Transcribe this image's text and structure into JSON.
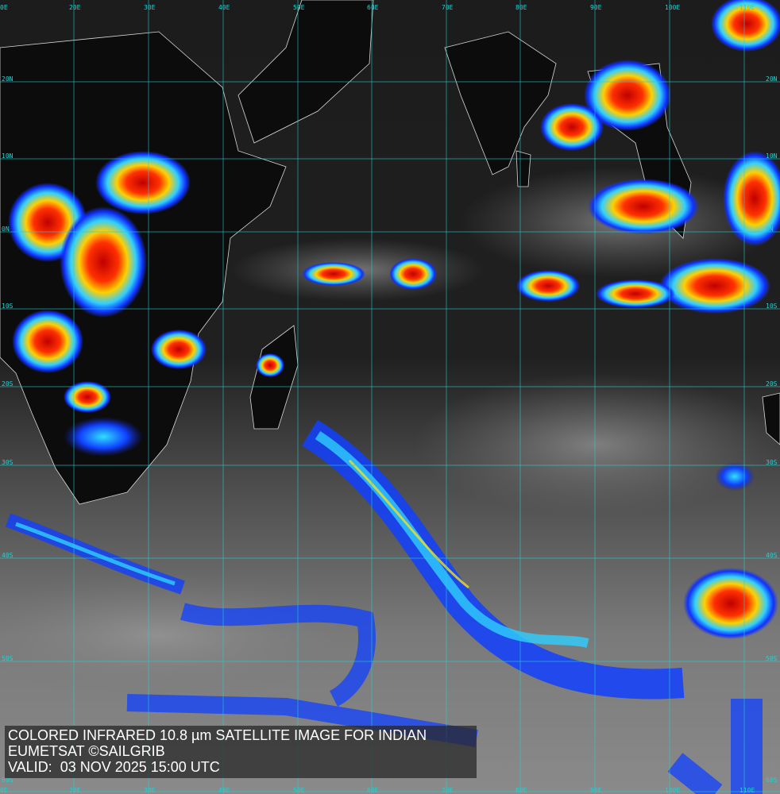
{
  "caption": {
    "line1": "COLORED INFRARED 10.8 µm SATELLITE IMAGE FOR INDIAN",
    "line2": "EUMETSAT ©SAILGRIB",
    "line3": "VALID:  03 NOV 2025 15:00 UTC"
  },
  "grid": {
    "longitudes": [
      "0E",
      "20E",
      "30E",
      "40E",
      "50E",
      "60E",
      "70E",
      "80E",
      "90E",
      "100E",
      "110E"
    ],
    "latitudes": [
      "20N",
      "10N",
      "0N",
      "10S",
      "20S",
      "30S",
      "40S",
      "50S",
      "60S"
    ]
  },
  "colors": {
    "grid": "#1fd3d3",
    "coast": "#e0e0e0",
    "cold_cloud": "#e02010",
    "mid_cloud": "#f0e020",
    "cool_cloud": "#1040ff"
  }
}
